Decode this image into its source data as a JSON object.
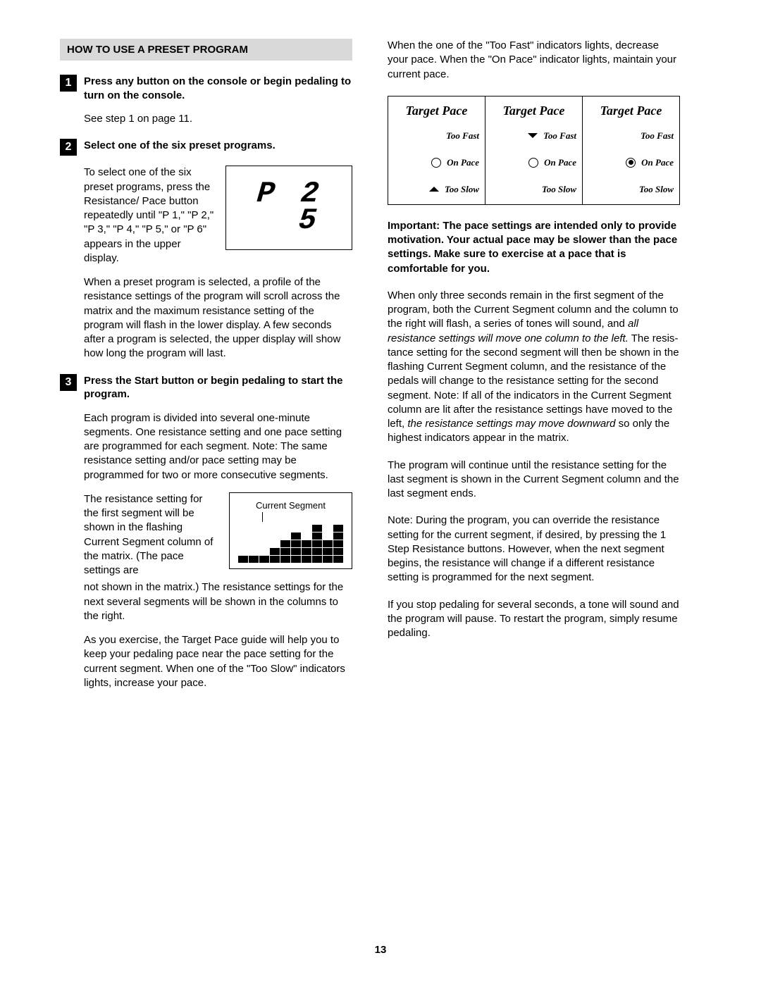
{
  "heading": "HOW TO USE A PRESET PROGRAM",
  "steps": {
    "s1": {
      "num": "1",
      "title": "Press any button on the console or begin pedaling to turn on the console.",
      "body": "See step 1 on page 11."
    },
    "s2": {
      "num": "2",
      "title": "Select one of the six preset programs.",
      "side_text": "To select one of the six preset programs, press the Resistance/ Pace button repeat­edly until \"P 1,\" \"P 2,\" \"P 3,\" \"P 4,\" \"P 5,\" or \"P 6\" appears in the upper display.",
      "display": "P 2\n  5",
      "p2": "When a preset program is selected, a profile of the resistance settings of the program will scroll across the matrix and the maximum resistance setting of the program will flash in the lower dis­play. A few seconds after a program is selected, the upper display will show how long the program will last."
    },
    "s3": {
      "num": "3",
      "title": "Press the Start button or begin pedaling to start the program.",
      "p1": "Each program is divided into several one-minute segments. One resistance setting and one pace setting are programmed for each segment. Note: The same resistance setting and/or pace setting may be programmed for two or more consecutive segments.",
      "seg_side": "The resistance setting for the first segment will be shown in the flashing Current Segment column of the matrix. (The pace settings are",
      "seg_label": "Current Segment",
      "p2": "not shown in the matrix.) The resistance settings for the next several segments will be shown in the columns to the right.",
      "p3": "As you exercise, the Target Pace guide will help you to keep your pedaling pace near the pace setting for the current segment. When one of the \"Too Slow\" indicators lights, increase your pace."
    }
  },
  "right": {
    "intro": "When the one of the \"Too Fast\" indicators lights, decrease your pace. When the \"On Pace\" indica­tor lights, maintain your current pace.",
    "pace_header": "Target Pace",
    "too_fast": "Too Fast",
    "on_pace": "On Pace",
    "too_slow": "Too Slow",
    "important": "Important: The pace settings are intended only to provide motivation. Your actual pace may be slower than the pace settings. Make sure to exercise at a pace that is comfortable for you.",
    "p1a": "When only three seconds remain in the first seg­ment of the program, both the Current Segment column and the column to the right will flash, a series of tones will sound, and ",
    "p1_em": "all resistance set­tings will move one column to the left.",
    "p1b": " The resis­tance setting for the second segment will then be shown in the flashing Current Segment column, and the resistance of the pedals will change to the resistance setting for the second segment. Note: If all of the indicators in the Current Segment col­umn are lit after the resistance settings have moved to the left, ",
    "p1_em2": "the resistance settings may move downward",
    "p1c": " so only the highest indicators appear in the matrix.",
    "p2": "The program will continue until the resistance setting for the last segment is shown in the Current Segment column and the last segment ends.",
    "p3": "Note: During the program, you can override the resistance setting for the current segment, if desired, by pressing the 1 Step Resistance but­tons. However, when the next segment begins, the resistance will change if a different resistance setting is programmed for the next segment.",
    "p4": "If you stop pedaling for several seconds, a tone will sound and the program will pause. To restart the program, simply resume pedaling."
  },
  "matrix": {
    "rows": 5,
    "cols": 10,
    "heights": [
      1,
      1,
      1,
      2,
      3,
      4,
      3,
      5,
      3,
      5
    ]
  },
  "page_number": "13",
  "colors": {
    "heading_bg": "#d9d9d9",
    "text": "#000000",
    "bg": "#ffffff"
  }
}
